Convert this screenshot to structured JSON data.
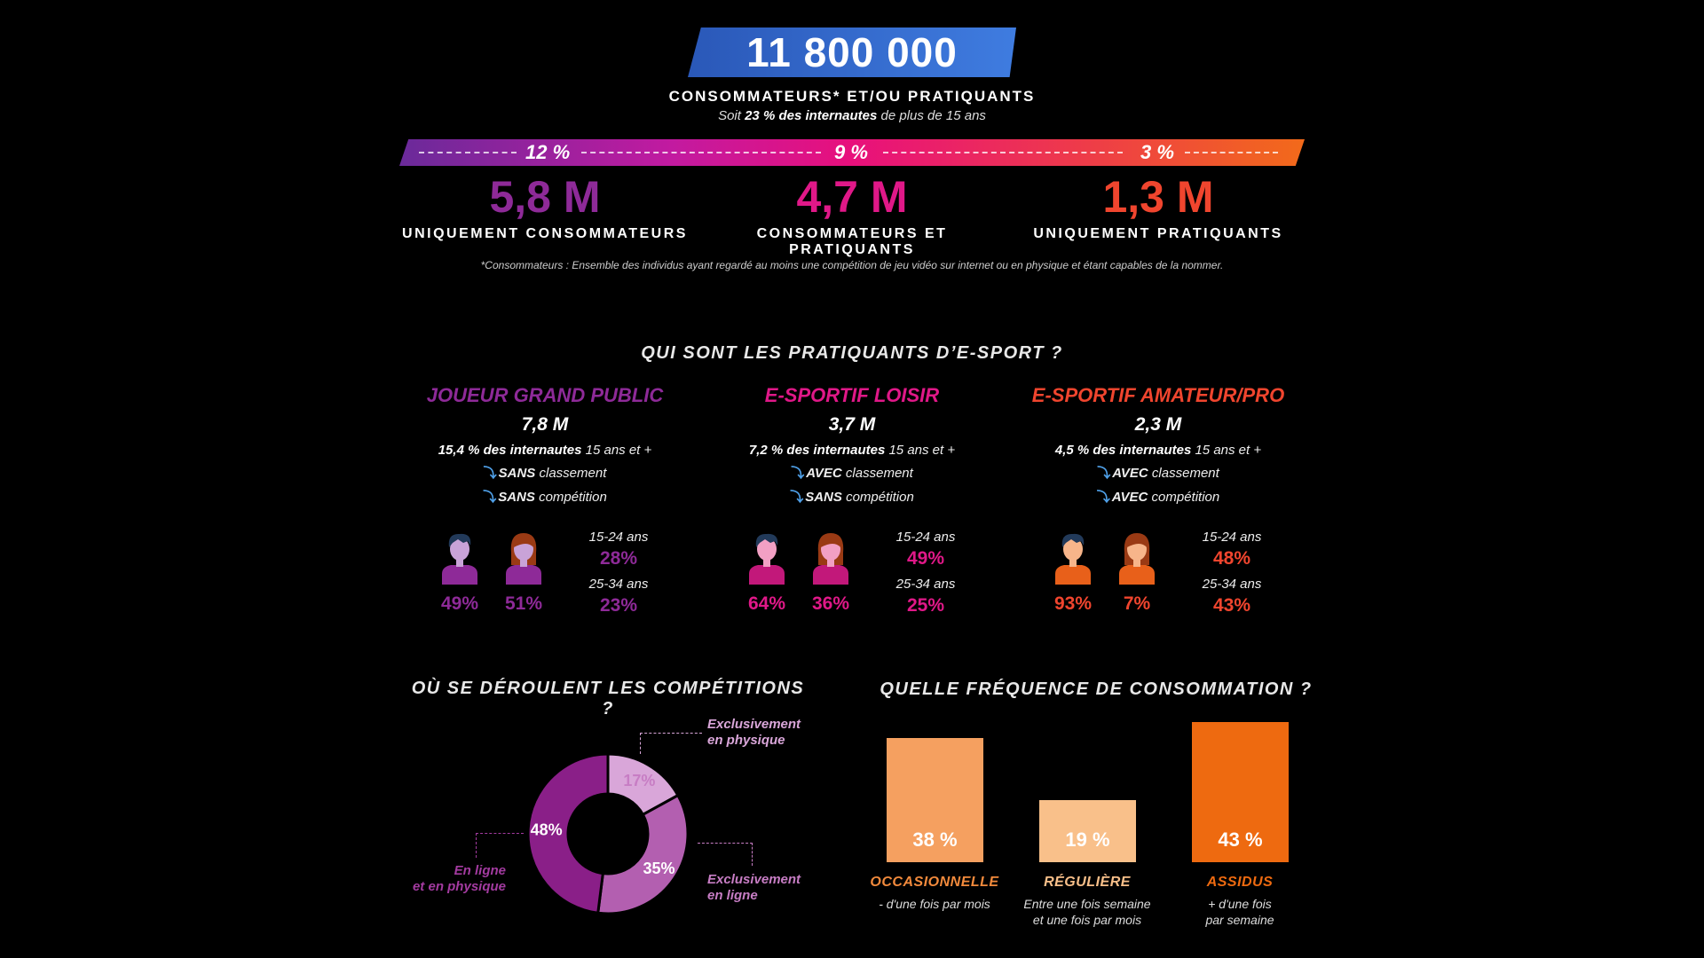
{
  "header": {
    "total": "11 800 000",
    "subtitle": "CONSOMMATEURS* ET/OU PRATIQUANTS",
    "line_prefix": "Soit ",
    "line_bold": "23 % des internautes",
    "line_suffix": " de plus de 15 ans"
  },
  "segments": [
    {
      "pct": "12 %",
      "value": "5,8 M",
      "label": "UNIQUEMENT CONSOMMATEURS",
      "color": "#8e2a98"
    },
    {
      "pct": "9 %",
      "value": "4,7 M",
      "label": "CONSOMMATEURS ET PRATIQUANTS",
      "color": "#e01888"
    },
    {
      "pct": "3 %",
      "value": "1,3 M",
      "label": "UNIQUEMENT PRATIQUANTS",
      "color": "#f0452e"
    }
  ],
  "footnote": "*Consommateurs : Ensemble des individus ayant regardé au moins une compétition de jeu vidéo sur internet ou en physique et étant capables de la nommer.",
  "profiles_title": "QUI SONT LES PRATIQUANTS D’E-SPORT ?",
  "profiles": [
    {
      "title": "JOUEUR GRAND PUBLIC",
      "count": "7,8 M",
      "share_bold": "15,4 % des internautes",
      "share_rest": " 15 ans et +",
      "crit1_bold": "SANS",
      "crit1_rest": " classement",
      "crit2_bold": "SANS",
      "crit2_rest": " compétition",
      "male": "49%",
      "female": "51%",
      "age1_label": "15-24 ans",
      "age1": "28%",
      "age2_label": "25-34 ans",
      "age2": "23%",
      "color": "#8e2a98",
      "shirt": "#8e2a98",
      "skin": "#c9a3d8"
    },
    {
      "title": "E-SPORTIF LOISIR",
      "count": "3,7 M",
      "share_bold": "7,2 % des internautes",
      "share_rest": " 15 ans et +",
      "crit1_bold": "AVEC",
      "crit1_rest": " classement",
      "crit2_bold": "SANS",
      "crit2_rest": " compétition",
      "male": "64%",
      "female": "36%",
      "age1_label": "15-24 ans",
      "age1": "49%",
      "age2_label": "25-34 ans",
      "age2": "25%",
      "color": "#e01888",
      "shirt": "#c2187a",
      "skin": "#f2a0c4"
    },
    {
      "title": "E-SPORTIF AMATEUR/PRO",
      "count": "2,3 M",
      "share_bold": "4,5 % des internautes",
      "share_rest": " 15 ans et +",
      "crit1_bold": "AVEC",
      "crit1_rest": " classement",
      "crit2_bold": "AVEC",
      "crit2_rest": " compétition",
      "male": "93%",
      "female": "7%",
      "age1_label": "15-24 ans",
      "age1": "48%",
      "age2_label": "25-34 ans",
      "age2": "43%",
      "color": "#f0452e",
      "shirt": "#e8601a",
      "skin": "#f7b58a"
    }
  ],
  "chart_data": [
    {
      "type": "pie",
      "title": "OÙ SE DÉROULENT LES COMPÉTITIONS ?",
      "slices": [
        {
          "label": "Exclusivement en physique",
          "line1": "Exclusivement",
          "line2": "en physique",
          "value": 17,
          "text": "17%",
          "color": "#d9a6d9"
        },
        {
          "label": "Exclusivement en ligne",
          "line1": "Exclusivement",
          "line2": "en ligne",
          "value": 35,
          "text": "35%",
          "color": "#b35fb0"
        },
        {
          "label": "En ligne et en physique",
          "line1": "En ligne",
          "line2": "et en physique",
          "value": 48,
          "text": "48%",
          "color": "#8a1f88"
        }
      ]
    },
    {
      "type": "bar",
      "title": "QUELLE FRÉQUENCE DE CONSOMMATION ?",
      "categories": [
        "OCCASIONNELLE",
        "RÉGULIÈRE",
        "ASSIDUS"
      ],
      "values": [
        38,
        19,
        43
      ],
      "value_labels": [
        "38 %",
        "19 %",
        "43 %"
      ],
      "descriptions": [
        [
          "- d'une fois par mois",
          ""
        ],
        [
          "Entre une fois semaine",
          "et une fois par mois"
        ],
        [
          "+ d'une fois",
          "par semaine"
        ]
      ],
      "colors": [
        "#f5a060",
        "#f9c08a",
        "#ee6a10"
      ],
      "label_colors": [
        "#f28a3c",
        "#f9c08a",
        "#ee6a10"
      ]
    }
  ]
}
